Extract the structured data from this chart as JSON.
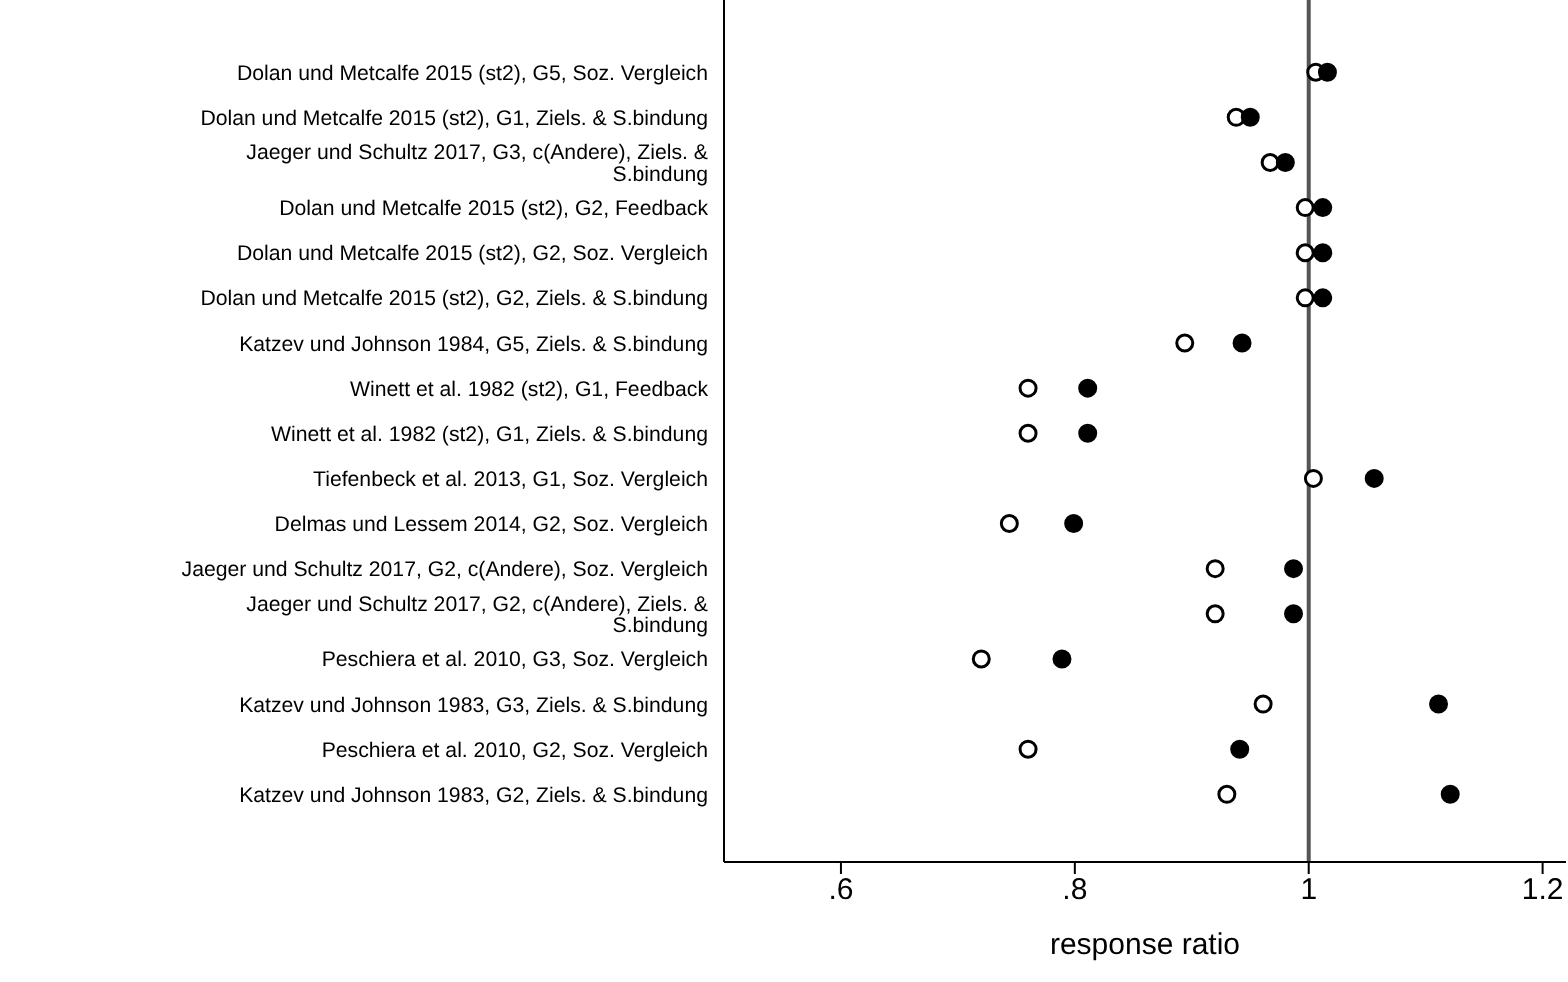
{
  "chart_data": {
    "type": "scatter",
    "xlabel": "response ratio",
    "categories": [
      "Dolan und Metcalfe 2015 (st2), G5, Soz. Vergleich",
      "Dolan und Metcalfe 2015 (st2), G1, Ziels. & S.bindung",
      "Jaeger und Schultz 2017, G3, c(Andere), Ziels. & S.bindung",
      "Dolan und Metcalfe 2015 (st2), G2, Feedback",
      "Dolan und Metcalfe 2015 (st2), G2, Soz. Vergleich",
      "Dolan und Metcalfe 2015 (st2), G2, Ziels. & S.bindung",
      "Katzev und Johnson 1984, G5, Ziels. & S.bindung",
      "Winett et al. 1982 (st2), G1, Feedback",
      "Winett et al. 1982 (st2), G1, Ziels. & S.bindung",
      "Tiefenbeck et al. 2013, G1, Soz. Vergleich",
      "Delmas und Lessem 2014, G2, Soz. Vergleich",
      "Jaeger und Schultz 2017, G2, c(Andere), Soz. Vergleich",
      "Jaeger und Schultz 2017, G2, c(Andere), Ziels. & S.bindung",
      "Peschiera et al. 2010, G3, Soz. Vergleich",
      "Katzev und Johnson 1983, G3, Ziels. & S.bindung",
      "Peschiera et al. 2010, G2, Soz. Vergleich",
      "Katzev und Johnson 1983, G2, Ziels. & S.bindung"
    ],
    "orientation": "horizontal",
    "marker": "circle",
    "series": [
      {
        "color": "#ffffff",
        "values": [
          1.006,
          0.938,
          0.967,
          0.997,
          0.997,
          0.997,
          0.894,
          0.76,
          0.76,
          1.004,
          0.744,
          0.92,
          0.92,
          0.72,
          0.961,
          0.76,
          0.93
        ]
      },
      {
        "color": "#000000",
        "values": [
          1.016,
          0.95,
          0.98,
          1.012,
          1.012,
          1.012,
          0.943,
          0.811,
          0.811,
          1.056,
          0.799,
          0.987,
          0.987,
          0.789,
          1.111,
          0.941,
          1.121
        ]
      }
    ],
    "xlim": [
      0.5,
      1.22
    ],
    "xticks": [
      {
        "value": 0.6,
        "label": ".6"
      },
      {
        "value": 0.8,
        "label": ".8"
      },
      1,
      1.2
    ],
    "ref_lines": [
      {
        "axis": "x",
        "value": 1,
        "color": "#555555"
      }
    ],
    "grid": false,
    "legend": false
  }
}
